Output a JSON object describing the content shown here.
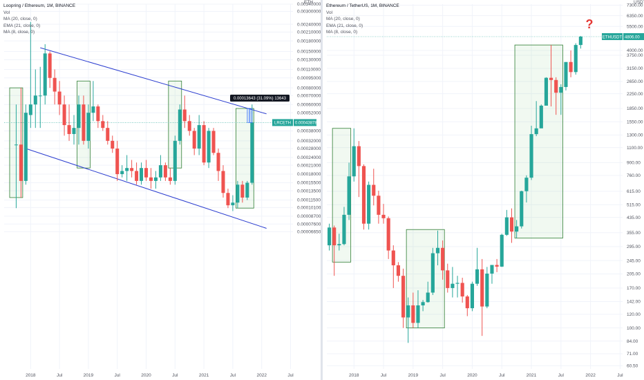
{
  "left_panel": {
    "legend": {
      "title": "Loopring / Ethereum, 1M, BINANCE",
      "vol": "Vol",
      "ma20": "MA (20, close, 0)",
      "ema21": "EMA (21, close, 0)",
      "ma8": "MA (8, close, 0)"
    },
    "axis_unit": "ETH",
    "price_tag": {
      "symbol": "LRCETH",
      "value": "0.00043878",
      "color": "#26a69a"
    },
    "measure_label": "0.00013643 (31.09%) 13643"
  },
  "right_panel": {
    "legend": {
      "title": "Ethereum / TetherUS, 1M, BINANCE",
      "vol": "Vol",
      "ma20": "MA (20, close, 0)",
      "ema21": "EMA (21, close, 0)",
      "ma8": "MA (8, close, 0)"
    },
    "axis_unit": "USDT",
    "price_tag": {
      "symbol": "ETHUSDT",
      "value": "4806.00",
      "color": "#26a69a"
    },
    "question_mark": "?"
  },
  "colors": {
    "up": "#26a69a",
    "down": "#ef5350",
    "channel": "#2a3ccf",
    "box_stroke": "#2e7d32",
    "box_fill": "rgba(76,175,80,0.08)",
    "question": "#e53935",
    "hline": "#26a69a"
  },
  "chart_data": [
    {
      "type": "candlestick",
      "title": "Loopring / Ethereum, 1M, BINANCE",
      "y_scale": "log",
      "ylim": [
        6.2e-06,
        0.0034
      ],
      "xlim": [
        "2017-08",
        "2022-08"
      ],
      "x_tick_labels": [
        {
          "label": "2018",
          "x": "2018-01"
        },
        {
          "label": "Jul",
          "x": "2018-07"
        },
        {
          "label": "2019",
          "x": "2019-01"
        },
        {
          "label": "Jul",
          "x": "2019-07"
        },
        {
          "label": "2020",
          "x": "2020-01"
        },
        {
          "label": "Jul",
          "x": "2020-07"
        },
        {
          "label": "2021",
          "x": "2021-01"
        },
        {
          "label": "Jul",
          "x": "2021-07"
        },
        {
          "label": "2022",
          "x": "2022-01"
        },
        {
          "label": "Jul",
          "x": "2022-07"
        }
      ],
      "y_tick_labels": [
        "0.00340000",
        "0.00300000",
        "0.00240000",
        "0.00210000",
        "0.00180000",
        "0.00150000",
        "0.00130000",
        "0.00110000",
        "0.00095000",
        "0.00080000",
        "0.00070000",
        "0.00060000",
        "0.00052000",
        "0.00038000",
        "0.00032000",
        "0.00028000",
        "0.00024000",
        "0.00021000",
        "0.00018000",
        "0.00015500",
        "0.00013500",
        "0.00011500",
        "0.00010100",
        "0.00008700",
        "0.00007600",
        "0.00006650"
      ],
      "current_price": 0.00043878,
      "candles": [
        {
          "t": "2017-10",
          "o": 0.0003,
          "h": 0.0006,
          "l": 0.0001,
          "c": 0.0003
        },
        {
          "t": "2017-11",
          "o": 0.0003,
          "h": 0.0008,
          "l": 0.00012,
          "c": 0.00016
        },
        {
          "t": "2017-12",
          "o": 0.00016,
          "h": 0.0006,
          "l": 0.00015,
          "c": 0.00052
        },
        {
          "t": "2018-01",
          "o": 0.0005,
          "h": 0.0025,
          "l": 0.0004,
          "c": 0.0006
        },
        {
          "t": "2018-02",
          "o": 0.0006,
          "h": 0.0011,
          "l": 0.0004,
          "c": 0.0007
        },
        {
          "t": "2018-03",
          "o": 0.0007,
          "h": 0.00115,
          "l": 0.0004,
          "c": 0.0007
        },
        {
          "t": "2018-04",
          "o": 0.0007,
          "h": 0.0017,
          "l": 0.0006,
          "c": 0.00145
        },
        {
          "t": "2018-05",
          "o": 0.00145,
          "h": 0.0015,
          "l": 0.0008,
          "c": 0.00095
        },
        {
          "t": "2018-06",
          "o": 0.00095,
          "h": 0.0011,
          "l": 0.0006,
          "c": 0.00075
        },
        {
          "t": "2018-07",
          "o": 0.00075,
          "h": 0.0009,
          "l": 0.0005,
          "c": 0.0006
        },
        {
          "t": "2018-08",
          "o": 0.0006,
          "h": 0.0007,
          "l": 0.00035,
          "c": 0.00042
        },
        {
          "t": "2018-09",
          "o": 0.00042,
          "h": 0.0006,
          "l": 0.00032,
          "c": 0.00036
        },
        {
          "t": "2018-10",
          "o": 0.00036,
          "h": 0.0005,
          "l": 0.0003,
          "c": 0.0004
        },
        {
          "t": "2018-11",
          "o": 0.0004,
          "h": 0.0007,
          "l": 0.0003,
          "c": 0.0006
        },
        {
          "t": "2018-12",
          "o": 0.0006,
          "h": 0.0007,
          "l": 0.0003,
          "c": 0.00032
        },
        {
          "t": "2019-01",
          "o": 0.00032,
          "h": 0.0006,
          "l": 0.00028,
          "c": 0.00052
        },
        {
          "t": "2019-02",
          "o": 0.00052,
          "h": 0.0009,
          "l": 0.00045,
          "c": 0.00058
        },
        {
          "t": "2019-03",
          "o": 0.00058,
          "h": 0.0006,
          "l": 0.0004,
          "c": 0.00045
        },
        {
          "t": "2019-04",
          "o": 0.00045,
          "h": 0.0005,
          "l": 0.00038,
          "c": 0.0004
        },
        {
          "t": "2019-05",
          "o": 0.0004,
          "h": 0.00045,
          "l": 0.0003,
          "c": 0.00032
        },
        {
          "t": "2019-06",
          "o": 0.00032,
          "h": 0.00035,
          "l": 0.00026,
          "c": 0.00028
        },
        {
          "t": "2019-07",
          "o": 0.00028,
          "h": 0.00032,
          "l": 0.00016,
          "c": 0.00018
        },
        {
          "t": "2019-08",
          "o": 0.00018,
          "h": 0.00021,
          "l": 0.00017,
          "c": 0.00019
        },
        {
          "t": "2019-09",
          "o": 0.00019,
          "h": 0.00025,
          "l": 0.00016,
          "c": 0.0002
        },
        {
          "t": "2019-10",
          "o": 0.0002,
          "h": 0.00023,
          "l": 0.00017,
          "c": 0.00019
        },
        {
          "t": "2019-11",
          "o": 0.00019,
          "h": 0.00022,
          "l": 0.00015,
          "c": 0.00016
        },
        {
          "t": "2019-12",
          "o": 0.00016,
          "h": 0.00022,
          "l": 0.00015,
          "c": 0.0002
        },
        {
          "t": "2020-01",
          "o": 0.0002,
          "h": 0.00023,
          "l": 0.00016,
          "c": 0.00017
        },
        {
          "t": "2020-02",
          "o": 0.00017,
          "h": 0.0002,
          "l": 0.00014,
          "c": 0.00016
        },
        {
          "t": "2020-03",
          "o": 0.00016,
          "h": 0.00019,
          "l": 0.00014,
          "c": 0.00017
        },
        {
          "t": "2020-04",
          "o": 0.00017,
          "h": 0.00025,
          "l": 0.00016,
          "c": 0.00021
        },
        {
          "t": "2020-05",
          "o": 0.00021,
          "h": 0.00022,
          "l": 0.00016,
          "c": 0.00017
        },
        {
          "t": "2020-06",
          "o": 0.00017,
          "h": 0.0002,
          "l": 0.00015,
          "c": 0.00016
        },
        {
          "t": "2020-07",
          "o": 0.00016,
          "h": 0.00035,
          "l": 0.00015,
          "c": 0.00032
        },
        {
          "t": "2020-08",
          "o": 0.00032,
          "h": 0.0006,
          "l": 0.0003,
          "c": 0.00055
        },
        {
          "t": "2020-09",
          "o": 0.00055,
          "h": 0.0007,
          "l": 0.0004,
          "c": 0.00045
        },
        {
          "t": "2020-10",
          "o": 0.00045,
          "h": 0.0005,
          "l": 0.00035,
          "c": 0.00038
        },
        {
          "t": "2020-11",
          "o": 0.00038,
          "h": 0.0004,
          "l": 0.00025,
          "c": 0.00028
        },
        {
          "t": "2020-12",
          "o": 0.00028,
          "h": 0.0005,
          "l": 0.00025,
          "c": 0.00042
        },
        {
          "t": "2021-01",
          "o": 0.00042,
          "h": 0.00045,
          "l": 0.00021,
          "c": 0.00022
        },
        {
          "t": "2021-02",
          "o": 0.00022,
          "h": 0.0004,
          "l": 0.0002,
          "c": 0.00038
        },
        {
          "t": "2021-03",
          "o": 0.00038,
          "h": 0.0004,
          "l": 0.00025,
          "c": 0.00026
        },
        {
          "t": "2021-04",
          "o": 0.00026,
          "h": 0.00028,
          "l": 0.00016,
          "c": 0.00019
        },
        {
          "t": "2021-05",
          "o": 0.00019,
          "h": 0.00021,
          "l": 0.00012,
          "c": 0.00013
        },
        {
          "t": "2021-06",
          "o": 0.00013,
          "h": 0.00014,
          "l": 0.0001,
          "c": 0.000105
        },
        {
          "t": "2021-07",
          "o": 0.000105,
          "h": 0.000125,
          "l": 9.5e-05,
          "c": 0.00011
        },
        {
          "t": "2021-08",
          "o": 0.00011,
          "h": 0.00016,
          "l": 0.0001,
          "c": 0.00015
        },
        {
          "t": "2021-09",
          "o": 0.00015,
          "h": 0.00016,
          "l": 0.00011,
          "c": 0.00012
        },
        {
          "t": "2021-10",
          "o": 0.00012,
          "h": 0.00016,
          "l": 0.000115,
          "c": 0.000155
        },
        {
          "t": "2021-11",
          "o": 0.000155,
          "h": 0.0006,
          "l": 0.00015,
          "c": 0.00044
        }
      ],
      "channel_lines": [
        {
          "from": {
            "t": "2018-03",
            "p": 0.0016
          },
          "to": {
            "t": "2022-02",
            "p": 0.00051
          }
        },
        {
          "from": {
            "t": "2017-12",
            "p": 0.00028
          },
          "to": {
            "t": "2022-02",
            "p": 7.05e-05
          }
        }
      ],
      "highlight_boxes": [
        {
          "from": "2017-09",
          "to": "2017-11",
          "low": 0.00012,
          "high": 0.0008
        },
        {
          "from": "2018-11",
          "to": "2019-01",
          "low": 0.0002,
          "high": 0.0009
        },
        {
          "from": "2020-06",
          "to": "2020-08",
          "low": 0.0002,
          "high": 0.0009
        },
        {
          "from": "2021-08",
          "to": "2021-11",
          "low": 0.0001,
          "high": 0.00056
        }
      ]
    },
    {
      "type": "candlestick",
      "title": "Ethereum / TetherUS, 1M, BINANCE",
      "y_scale": "log",
      "ylim": [
        58,
        7400
      ],
      "xlim": [
        "2017-08",
        "2022-08"
      ],
      "x_tick_labels": [
        {
          "label": "2018",
          "x": "2018-01"
        },
        {
          "label": "Jul",
          "x": "2018-07"
        },
        {
          "label": "2019",
          "x": "2019-01"
        },
        {
          "label": "Jul",
          "x": "2019-07"
        },
        {
          "label": "2020",
          "x": "2020-01"
        },
        {
          "label": "Jul",
          "x": "2020-07"
        },
        {
          "label": "2021",
          "x": "2021-01"
        },
        {
          "label": "Jul",
          "x": "2021-07"
        },
        {
          "label": "2022",
          "x": "2022-01"
        },
        {
          "label": "Jul",
          "x": "2022-07"
        }
      ],
      "y_tick_labels": [
        "7300.00",
        "6350.00",
        "5500.00",
        "4000.00",
        "3750.00",
        "3150.00",
        "2650.00",
        "2250.00",
        "1850.00",
        "1550.00",
        "1300.00",
        "1100.00",
        "900.00",
        "760.00",
        "615.00",
        "515.00",
        "435.00",
        "355.00",
        "295.00",
        "245.00",
        "205.00",
        "170.00",
        "142.00",
        "120.00",
        "100.00",
        "84.00",
        "71.00",
        "60.50"
      ],
      "current_price": 4806.0,
      "candles": [
        {
          "t": "2017-08",
          "o": 300,
          "h": 400,
          "l": 280,
          "c": 380
        },
        {
          "t": "2017-09",
          "o": 380,
          "h": 390,
          "l": 200,
          "c": 300
        },
        {
          "t": "2017-10",
          "o": 300,
          "h": 350,
          "l": 280,
          "c": 305
        },
        {
          "t": "2017-11",
          "o": 305,
          "h": 500,
          "l": 300,
          "c": 450
        },
        {
          "t": "2017-12",
          "o": 450,
          "h": 900,
          "l": 420,
          "c": 750
        },
        {
          "t": "2018-01",
          "o": 750,
          "h": 1420,
          "l": 700,
          "c": 1120
        },
        {
          "t": "2018-02",
          "o": 1120,
          "h": 1200,
          "l": 570,
          "c": 860
        },
        {
          "t": "2018-03",
          "o": 860,
          "h": 880,
          "l": 370,
          "c": 400
        },
        {
          "t": "2018-04",
          "o": 400,
          "h": 700,
          "l": 370,
          "c": 670
        },
        {
          "t": "2018-05",
          "o": 670,
          "h": 830,
          "l": 510,
          "c": 580
        },
        {
          "t": "2018-06",
          "o": 580,
          "h": 620,
          "l": 400,
          "c": 450
        },
        {
          "t": "2018-07",
          "o": 450,
          "h": 520,
          "l": 400,
          "c": 430
        },
        {
          "t": "2018-08",
          "o": 430,
          "h": 440,
          "l": 250,
          "c": 280
        },
        {
          "t": "2018-09",
          "o": 280,
          "h": 300,
          "l": 170,
          "c": 230
        },
        {
          "t": "2018-10",
          "o": 230,
          "h": 240,
          "l": 185,
          "c": 200
        },
        {
          "t": "2018-11",
          "o": 200,
          "h": 220,
          "l": 100,
          "c": 115
        },
        {
          "t": "2018-12",
          "o": 115,
          "h": 150,
          "l": 82,
          "c": 135
        },
        {
          "t": "2019-01",
          "o": 135,
          "h": 160,
          "l": 100,
          "c": 107
        },
        {
          "t": "2019-02",
          "o": 107,
          "h": 165,
          "l": 100,
          "c": 135
        },
        {
          "t": "2019-03",
          "o": 135,
          "h": 145,
          "l": 125,
          "c": 141
        },
        {
          "t": "2019-04",
          "o": 141,
          "h": 185,
          "l": 140,
          "c": 160
        },
        {
          "t": "2019-05",
          "o": 160,
          "h": 290,
          "l": 155,
          "c": 270
        },
        {
          "t": "2019-06",
          "o": 270,
          "h": 365,
          "l": 230,
          "c": 290
        },
        {
          "t": "2019-07",
          "o": 290,
          "h": 320,
          "l": 190,
          "c": 215
        },
        {
          "t": "2019-08",
          "o": 215,
          "h": 235,
          "l": 160,
          "c": 170
        },
        {
          "t": "2019-09",
          "o": 170,
          "h": 225,
          "l": 150,
          "c": 180
        },
        {
          "t": "2019-10",
          "o": 180,
          "h": 200,
          "l": 150,
          "c": 182
        },
        {
          "t": "2019-11",
          "o": 182,
          "h": 195,
          "l": 140,
          "c": 152
        },
        {
          "t": "2019-12",
          "o": 152,
          "h": 155,
          "l": 117,
          "c": 130
        },
        {
          "t": "2020-01",
          "o": 130,
          "h": 185,
          "l": 125,
          "c": 180
        },
        {
          "t": "2020-02",
          "o": 180,
          "h": 290,
          "l": 175,
          "c": 218
        },
        {
          "t": "2020-03",
          "o": 218,
          "h": 250,
          "l": 90,
          "c": 133
        },
        {
          "t": "2020-04",
          "o": 133,
          "h": 225,
          "l": 130,
          "c": 206
        },
        {
          "t": "2020-05",
          "o": 206,
          "h": 227,
          "l": 180,
          "c": 231
        },
        {
          "t": "2020-06",
          "o": 231,
          "h": 250,
          "l": 210,
          "c": 226
        },
        {
          "t": "2020-07",
          "o": 226,
          "h": 350,
          "l": 225,
          "c": 345
        },
        {
          "t": "2020-08",
          "o": 345,
          "h": 480,
          "l": 340,
          "c": 435
        },
        {
          "t": "2020-09",
          "o": 435,
          "h": 490,
          "l": 310,
          "c": 360
        },
        {
          "t": "2020-10",
          "o": 360,
          "h": 420,
          "l": 330,
          "c": 386
        },
        {
          "t": "2020-11",
          "o": 386,
          "h": 620,
          "l": 375,
          "c": 616
        },
        {
          "t": "2020-12",
          "o": 616,
          "h": 760,
          "l": 530,
          "c": 737
        },
        {
          "t": "2021-01",
          "o": 737,
          "h": 1470,
          "l": 715,
          "c": 1315
        },
        {
          "t": "2021-02",
          "o": 1315,
          "h": 2040,
          "l": 1280,
          "c": 1420
        },
        {
          "t": "2021-03",
          "o": 1420,
          "h": 1950,
          "l": 1450,
          "c": 1920
        },
        {
          "t": "2021-04",
          "o": 1920,
          "h": 2800,
          "l": 1930,
          "c": 2780
        },
        {
          "t": "2021-05",
          "o": 2780,
          "h": 4300,
          "l": 1900,
          "c": 2700
        },
        {
          "t": "2021-06",
          "o": 2700,
          "h": 2800,
          "l": 1700,
          "c": 2280
        },
        {
          "t": "2021-07",
          "o": 2280,
          "h": 2550,
          "l": 1700,
          "c": 2460
        },
        {
          "t": "2021-08",
          "o": 2460,
          "h": 3400,
          "l": 2350,
          "c": 3430
        },
        {
          "t": "2021-09",
          "o": 3430,
          "h": 4000,
          "l": 2800,
          "c": 3000
        },
        {
          "t": "2021-10",
          "o": 3000,
          "h": 4400,
          "l": 2900,
          "c": 4300
        },
        {
          "t": "2021-11",
          "o": 4300,
          "h": 4850,
          "l": 4100,
          "c": 4806
        }
      ],
      "highlight_boxes": [
        {
          "from": "2017-09",
          "to": "2017-12",
          "low": 240,
          "high": 1420
        },
        {
          "from": "2018-12",
          "to": "2019-07",
          "low": 100,
          "high": 370
        },
        {
          "from": "2020-10",
          "to": "2021-07",
          "low": 330,
          "high": 4300
        }
      ]
    }
  ]
}
